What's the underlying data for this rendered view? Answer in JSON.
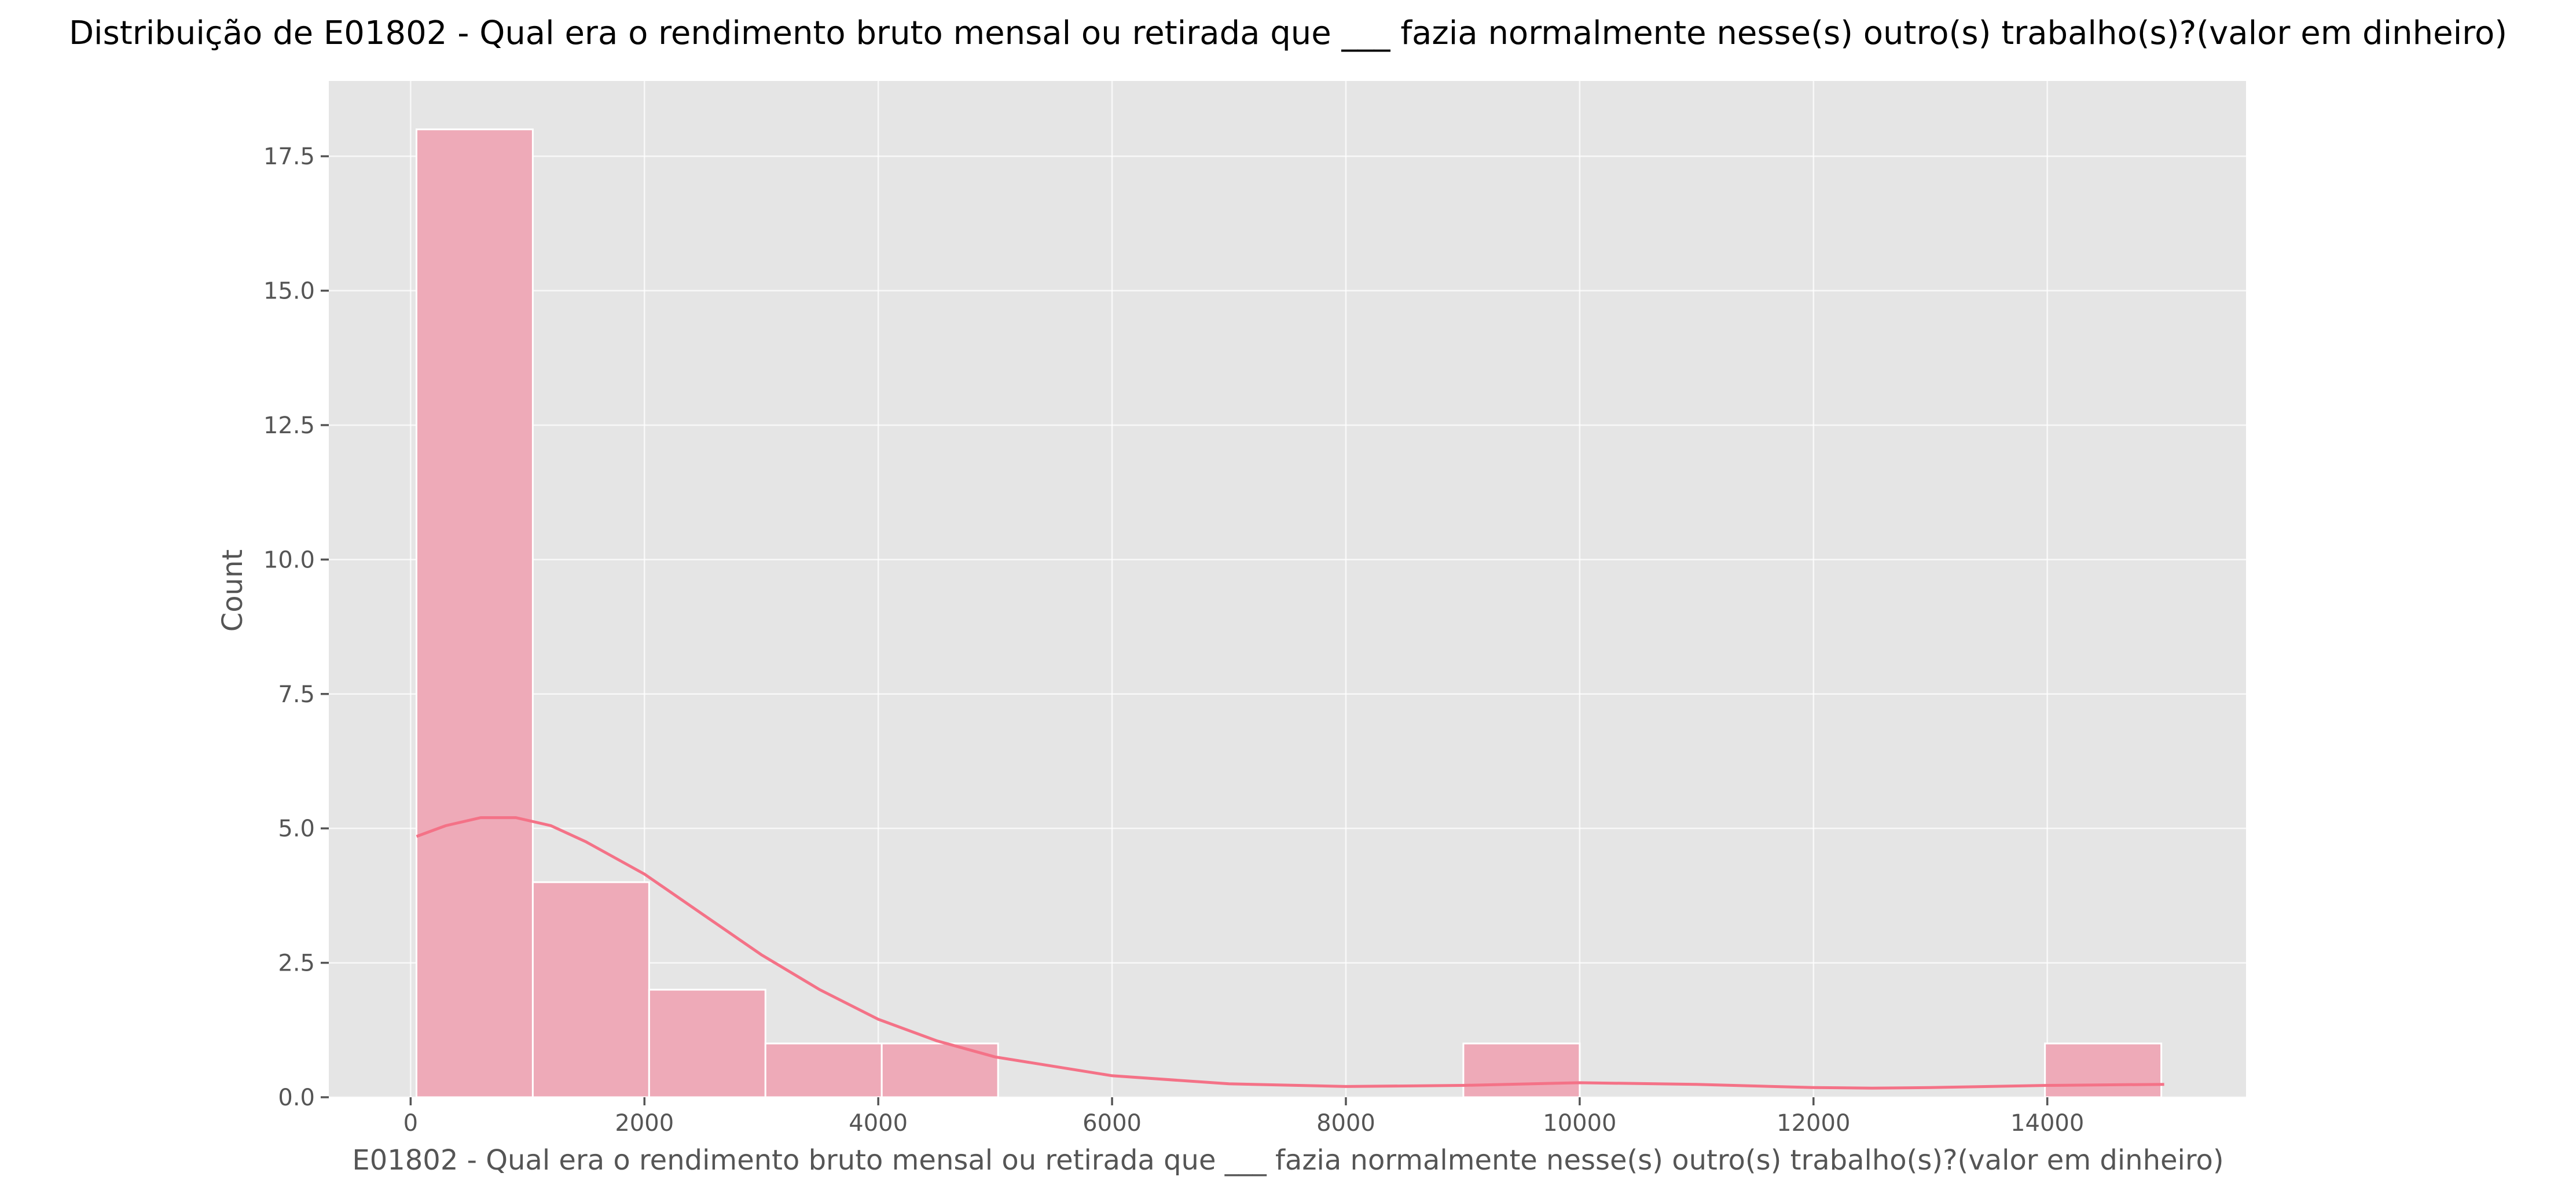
{
  "chart_data": {
    "type": "histogram",
    "title": "Distribuição de E01802 - Qual era o rendimento bruto mensal ou retirada que ___ fazia normalmente nesse(s) outro(s) trabalho(s)?(valor em dinheiro)",
    "xlabel": "E01802 - Qual era o rendimento bruto mensal ou retirada que ___ fazia normalmente nesse(s) outro(s) trabalho(s)?(valor em dinheiro)",
    "ylabel": "Count",
    "xlim": [
      -700,
      15700
    ],
    "ylim": [
      0,
      18.9
    ],
    "x_ticks": [
      0,
      2000,
      4000,
      6000,
      8000,
      10000,
      12000,
      14000
    ],
    "y_ticks": [
      0.0,
      2.5,
      5.0,
      7.5,
      10.0,
      12.5,
      15.0,
      17.5
    ],
    "bins": [
      {
        "start": 50,
        "end": 1045,
        "count": 18
      },
      {
        "start": 1045,
        "end": 2040,
        "count": 4
      },
      {
        "start": 2040,
        "end": 3035,
        "count": 2
      },
      {
        "start": 3035,
        "end": 4030,
        "count": 1
      },
      {
        "start": 4030,
        "end": 5025,
        "count": 1
      },
      {
        "start": 5025,
        "end": 6020,
        "count": 0
      },
      {
        "start": 6020,
        "end": 7015,
        "count": 0
      },
      {
        "start": 7015,
        "end": 8010,
        "count": 0
      },
      {
        "start": 8010,
        "end": 9005,
        "count": 0
      },
      {
        "start": 9005,
        "end": 10000,
        "count": 1
      },
      {
        "start": 10000,
        "end": 10995,
        "count": 0
      },
      {
        "start": 10995,
        "end": 11990,
        "count": 0
      },
      {
        "start": 11990,
        "end": 12985,
        "count": 0
      },
      {
        "start": 12985,
        "end": 13980,
        "count": 0
      },
      {
        "start": 13980,
        "end": 14975,
        "count": 1
      }
    ],
    "kde": {
      "x": [
        50,
        300,
        600,
        900,
        1200,
        1500,
        2000,
        2500,
        3000,
        3500,
        4000,
        4500,
        5000,
        6000,
        7000,
        8000,
        9000,
        10000,
        11000,
        12000,
        12500,
        13000,
        14000,
        15000
      ],
      "y": [
        4.85,
        5.05,
        5.2,
        5.2,
        5.05,
        4.75,
        4.15,
        3.4,
        2.65,
        2.0,
        1.45,
        1.05,
        0.75,
        0.4,
        0.25,
        0.2,
        0.22,
        0.27,
        0.24,
        0.18,
        0.17,
        0.18,
        0.22,
        0.24
      ]
    },
    "grid": true
  }
}
